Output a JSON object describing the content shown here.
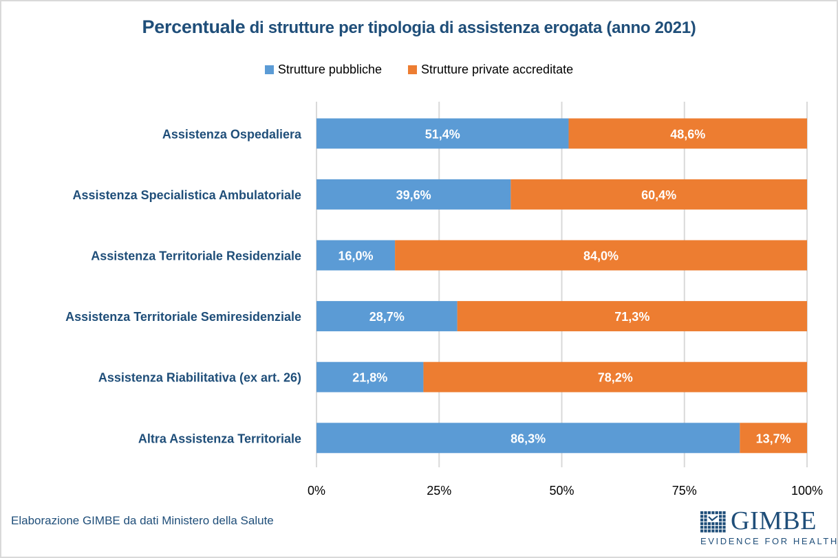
{
  "colors": {
    "public": "#5b9bd5",
    "private": "#ed7d31",
    "title": "#1f4e79",
    "gridline": "#d9d9d9",
    "label_text": "#ffffff"
  },
  "footer": {
    "source_note": "Elaborazione GIMBE da dati Ministero della Salute"
  },
  "logo": {
    "brand": "GIMBE",
    "tagline": "EVIDENCE FOR HEALTH",
    "icon": "grid-check-icon"
  },
  "chart_data": {
    "type": "bar",
    "orientation": "horizontal",
    "stacked": "percent",
    "title_lead": "Percentuale",
    "title_rest": " di strutture per tipologia di assistenza erogata (anno 2021)",
    "title": "Percentuale di strutture per tipologia di assistenza erogata (anno 2021)",
    "xlabel": "",
    "ylabel": "",
    "xlim": [
      0,
      100
    ],
    "x_ticks": [
      0,
      25,
      50,
      75,
      100
    ],
    "x_tick_labels": [
      "0%",
      "25%",
      "50%",
      "75%",
      "100%"
    ],
    "grid": "vertical",
    "legend_position": "top",
    "categories": [
      "Assistenza  Ospedaliera",
      "Assistenza  Specialistica  Ambulatoriale",
      "Assistenza  Territoriale  Residenziale",
      "Assistenza  Territoriale  Semiresidenziale",
      "Assistenza  Riabilitativa  (ex  art.  26)",
      "Altra  Assistenza  Territoriale"
    ],
    "series": [
      {
        "name": "Strutture pubbliche",
        "color": "#5b9bd5",
        "values": [
          51.4,
          39.6,
          16.0,
          28.7,
          21.8,
          86.3
        ],
        "labels": [
          "51,4%",
          "39,6%",
          "16,0%",
          "28,7%",
          "21,8%",
          "86,3%"
        ]
      },
      {
        "name": "Strutture private accreditate",
        "color": "#ed7d31",
        "values": [
          48.6,
          60.4,
          84.0,
          71.3,
          78.2,
          13.7
        ],
        "labels": [
          "48,6%",
          "60,4%",
          "84,0%",
          "71,3%",
          "78,2%",
          "13,7%"
        ]
      }
    ]
  }
}
